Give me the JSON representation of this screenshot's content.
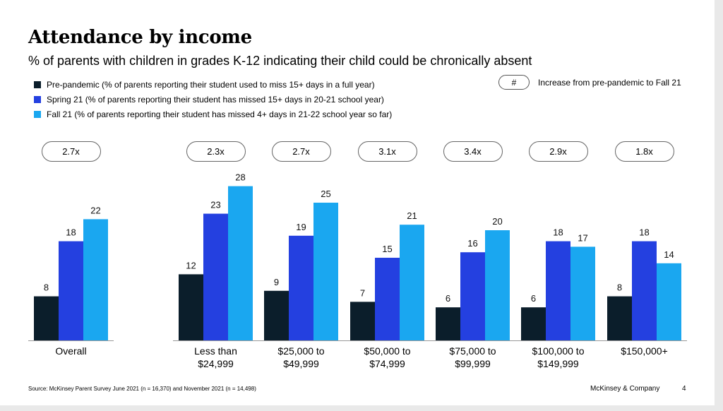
{
  "title": "Attendance by income",
  "subtitle": "% of parents with children in grades K-12 indicating their child could be chronically absent",
  "legend": [
    {
      "label": "Pre-pandemic (% of parents reporting their student used to miss 15+ days in a full year)",
      "color": "#0b1e2b"
    },
    {
      "label": "Spring 21 (% of parents reporting their student has missed 15+ days in 20-21 school year)",
      "color": "#2440e0"
    },
    {
      "label": "Fall 21 (% of parents reporting their student has missed 4+ days in 21-22 school year so far)",
      "color": "#1aa7f0"
    }
  ],
  "note": {
    "symbol": "#",
    "label": "Increase from pre-pandemic to Fall 21"
  },
  "chart_data": {
    "type": "bar",
    "categories": [
      [
        "Overall"
      ],
      [
        "Less than",
        "$24,999"
      ],
      [
        "$25,000 to",
        "$49,999"
      ],
      [
        "$50,000 to",
        "$74,999"
      ],
      [
        "$75,000 to",
        "$99,999"
      ],
      [
        "$100,000 to",
        "$149,999"
      ],
      [
        "$150,000+"
      ]
    ],
    "series": [
      {
        "name": "Pre-pandemic (% of parents reporting their student used to miss 15+ days in a full year)",
        "color": "#0b1e2b",
        "values": [
          8,
          12,
          9,
          7,
          6,
          6,
          8
        ]
      },
      {
        "name": "Spring 21 (% of parents reporting their student has missed 15+ days in 20-21 school year)",
        "color": "#2440e0",
        "values": [
          18,
          23,
          19,
          15,
          16,
          18,
          18
        ]
      },
      {
        "name": "Fall 21 (% of parents reporting their student has missed 4+ days in 21-22 school year so far)",
        "color": "#1aa7f0",
        "values": [
          22,
          28,
          25,
          21,
          20,
          17,
          14
        ]
      }
    ],
    "increase": [
      "2.7x",
      "2.3x",
      "2.7x",
      "3.1x",
      "3.4x",
      "2.9x",
      "1.8x"
    ],
    "ylim": [
      0,
      28
    ],
    "grid": false
  },
  "footer": {
    "source": "Source: McKinsey Parent Survey June 2021 (n = 16,370) and November 2021  (n = 14,498)",
    "brand": "McKinsey & Company",
    "page": "4"
  }
}
